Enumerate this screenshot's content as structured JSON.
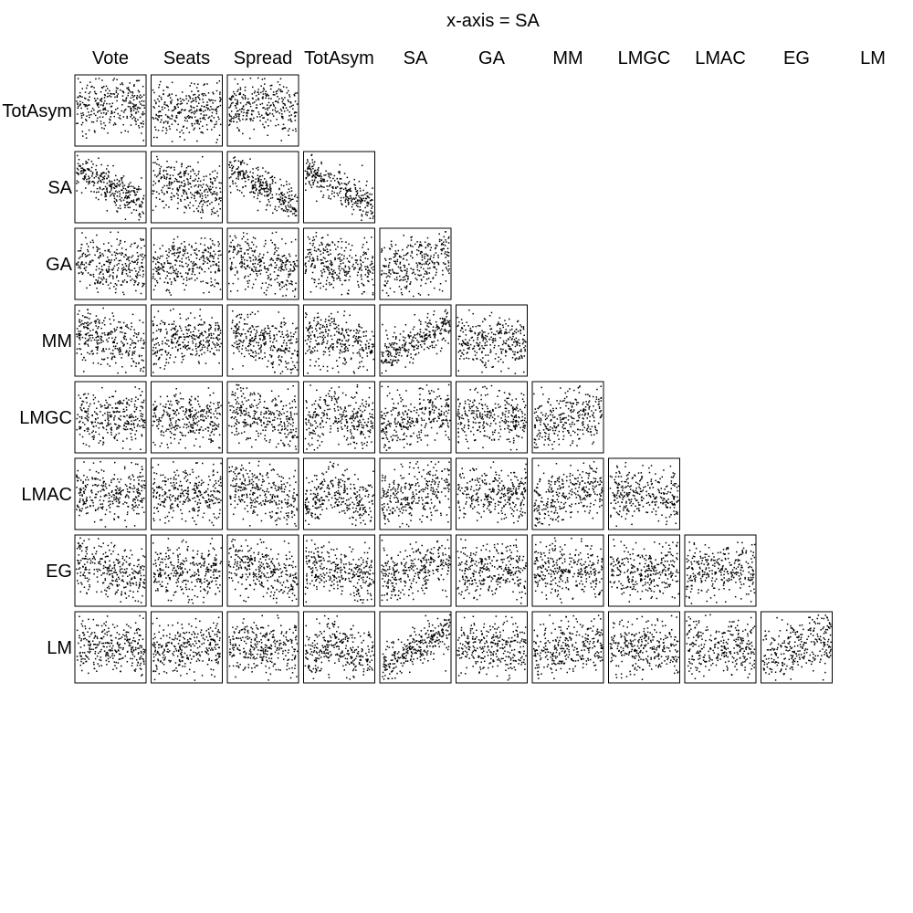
{
  "chart_data": {
    "type": "scatter-matrix",
    "title": "x-axis = SA",
    "column_labels": [
      "Vote",
      "Seats",
      "Spread",
      "TotAsym",
      "SA",
      "GA",
      "MM",
      "LMGC",
      "LMAC",
      "EG",
      "LM"
    ],
    "row_labels": [
      "TotAsym",
      "SA",
      "GA",
      "MM",
      "LMGC",
      "LMAC",
      "EG",
      "LM"
    ],
    "layout": "lower-triangle",
    "axes_ticks": false,
    "panels": [
      {
        "row": "TotAsym",
        "col": "Vote",
        "trend": "hump, rising then falling"
      },
      {
        "row": "TotAsym",
        "col": "Seats",
        "trend": "slight rise"
      },
      {
        "row": "TotAsym",
        "col": "Spread",
        "trend": "hump"
      },
      {
        "row": "SA",
        "col": "Vote",
        "trend": "strong negative"
      },
      {
        "row": "SA",
        "col": "Seats",
        "trend": "negative"
      },
      {
        "row": "SA",
        "col": "Spread",
        "trend": "strong negative"
      },
      {
        "row": "SA",
        "col": "TotAsym",
        "trend": "strong negative"
      },
      {
        "row": "GA",
        "col": "Vote",
        "trend": "weak negative"
      },
      {
        "row": "GA",
        "col": "Seats",
        "trend": "flat"
      },
      {
        "row": "GA",
        "col": "Spread",
        "trend": "negative"
      },
      {
        "row": "GA",
        "col": "TotAsym",
        "trend": "negative"
      },
      {
        "row": "GA",
        "col": "SA",
        "trend": "positive"
      },
      {
        "row": "MM",
        "col": "Vote",
        "trend": "negative"
      },
      {
        "row": "MM",
        "col": "Seats",
        "trend": "flat"
      },
      {
        "row": "MM",
        "col": "Spread",
        "trend": "negative"
      },
      {
        "row": "MM",
        "col": "TotAsym",
        "trend": "negative"
      },
      {
        "row": "MM",
        "col": "SA",
        "trend": "strong positive"
      },
      {
        "row": "MM",
        "col": "GA",
        "trend": "weak negative"
      },
      {
        "row": "LMGC",
        "col": "Vote",
        "trend": "flat"
      },
      {
        "row": "LMGC",
        "col": "Seats",
        "trend": "flat"
      },
      {
        "row": "LMGC",
        "col": "Spread",
        "trend": "negative"
      },
      {
        "row": "LMGC",
        "col": "TotAsym",
        "trend": "U-shape"
      },
      {
        "row": "LMGC",
        "col": "SA",
        "trend": "positive"
      },
      {
        "row": "LMGC",
        "col": "GA",
        "trend": "flat"
      },
      {
        "row": "LMGC",
        "col": "MM",
        "trend": "positive"
      },
      {
        "row": "LMAC",
        "col": "Vote",
        "trend": "flat"
      },
      {
        "row": "LMAC",
        "col": "Seats",
        "trend": "flat"
      },
      {
        "row": "LMAC",
        "col": "Spread",
        "trend": "negative"
      },
      {
        "row": "LMAC",
        "col": "TotAsym",
        "trend": "U-shape"
      },
      {
        "row": "LMAC",
        "col": "SA",
        "trend": "positive"
      },
      {
        "row": "LMAC",
        "col": "GA",
        "trend": "flat"
      },
      {
        "row": "LMAC",
        "col": "MM",
        "trend": "positive"
      },
      {
        "row": "LMAC",
        "col": "LMGC",
        "trend": "weak negative"
      },
      {
        "row": "EG",
        "col": "Vote",
        "trend": "negative"
      },
      {
        "row": "EG",
        "col": "Seats",
        "trend": "flat"
      },
      {
        "row": "EG",
        "col": "Spread",
        "trend": "negative"
      },
      {
        "row": "EG",
        "col": "TotAsym",
        "trend": "negative"
      },
      {
        "row": "EG",
        "col": "SA",
        "trend": "positive"
      },
      {
        "row": "EG",
        "col": "GA",
        "trend": "flat"
      },
      {
        "row": "EG",
        "col": "MM",
        "trend": "flat"
      },
      {
        "row": "EG",
        "col": "LMGC",
        "trend": "flat"
      },
      {
        "row": "EG",
        "col": "LMAC",
        "trend": "flat"
      },
      {
        "row": "LM",
        "col": "Vote",
        "trend": "flat"
      },
      {
        "row": "LM",
        "col": "Seats",
        "trend": "weak positive"
      },
      {
        "row": "LM",
        "col": "Spread",
        "trend": "flat"
      },
      {
        "row": "LM",
        "col": "TotAsym",
        "trend": "U-shape"
      },
      {
        "row": "LM",
        "col": "SA",
        "trend": "strong positive"
      },
      {
        "row": "LM",
        "col": "GA",
        "trend": "flat"
      },
      {
        "row": "LM",
        "col": "MM",
        "trend": "weak positive"
      },
      {
        "row": "LM",
        "col": "LMGC",
        "trend": "flat"
      },
      {
        "row": "LM",
        "col": "LMAC",
        "trend": "flat"
      },
      {
        "row": "LM",
        "col": "EG",
        "trend": "positive"
      }
    ]
  }
}
